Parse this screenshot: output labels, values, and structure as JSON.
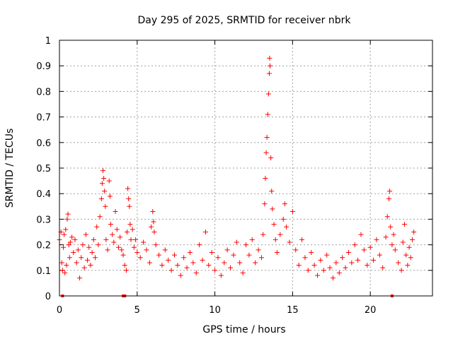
{
  "chart_data": {
    "type": "scatter",
    "title": "Day 295 of 2025, SRMTID for receiver nbrk",
    "xlabel": "GPS time / hours",
    "ylabel": "SRMTID / TECUs",
    "xlim": [
      0,
      24
    ],
    "ylim": [
      0,
      1
    ],
    "xticks": [
      "0",
      "5",
      "10",
      "15",
      "20"
    ],
    "xtick_values": [
      0,
      5,
      10,
      15,
      20
    ],
    "yticks": [
      "0",
      "0.1",
      "0.2",
      "0.3",
      "0.4",
      "0.5",
      "0.6",
      "0.7",
      "0.8",
      "0.9",
      "1"
    ],
    "ytick_values": [
      0,
      0.1,
      0.2,
      0.3,
      0.4,
      0.5,
      0.6,
      0.7,
      0.8,
      0.9,
      1.0
    ],
    "grid": true,
    "marker": "+",
    "color": "#ff0000",
    "series": [
      {
        "name": "SRMTID",
        "points": [
          [
            0.0,
            0.22
          ],
          [
            0.1,
            0.25
          ],
          [
            0.15,
            0.13
          ],
          [
            0.2,
            0.1
          ],
          [
            0.25,
            0.19
          ],
          [
            0.3,
            0.24
          ],
          [
            0.35,
            0.09
          ],
          [
            0.4,
            0.26
          ],
          [
            0.45,
            0.12
          ],
          [
            0.5,
            0.3
          ],
          [
            0.55,
            0.32
          ],
          [
            0.6,
            0.2
          ],
          [
            0.65,
            0.15
          ],
          [
            0.7,
            0.21
          ],
          [
            0.8,
            0.23
          ],
          [
            0.9,
            0.17
          ],
          [
            1.0,
            0.22
          ],
          [
            1.1,
            0.13
          ],
          [
            1.2,
            0.18
          ],
          [
            1.3,
            0.07
          ],
          [
            1.4,
            0.15
          ],
          [
            1.5,
            0.2
          ],
          [
            1.6,
            0.11
          ],
          [
            1.7,
            0.24
          ],
          [
            1.8,
            0.14
          ],
          [
            1.9,
            0.19
          ],
          [
            2.0,
            0.12
          ],
          [
            2.1,
            0.17
          ],
          [
            2.2,
            0.22
          ],
          [
            2.3,
            0.15
          ],
          [
            2.4,
            0.27
          ],
          [
            2.5,
            0.2
          ],
          [
            2.6,
            0.31
          ],
          [
            2.7,
            0.38
          ],
          [
            2.75,
            0.44
          ],
          [
            2.8,
            0.49
          ],
          [
            2.85,
            0.46
          ],
          [
            2.9,
            0.41
          ],
          [
            2.95,
            0.35
          ],
          [
            3.0,
            0.22
          ],
          [
            3.1,
            0.18
          ],
          [
            3.2,
            0.45
          ],
          [
            3.25,
            0.39
          ],
          [
            3.3,
            0.28
          ],
          [
            3.4,
            0.24
          ],
          [
            3.5,
            0.21
          ],
          [
            3.6,
            0.33
          ],
          [
            3.7,
            0.26
          ],
          [
            3.8,
            0.19
          ],
          [
            3.9,
            0.23
          ],
          [
            4.0,
            0.18
          ],
          [
            4.1,
            0.16
          ],
          [
            4.2,
            0.12
          ],
          [
            4.3,
            0.1
          ],
          [
            4.35,
            0.25
          ],
          [
            4.4,
            0.42
          ],
          [
            4.45,
            0.38
          ],
          [
            4.5,
            0.35
          ],
          [
            4.55,
            0.28
          ],
          [
            4.6,
            0.22
          ],
          [
            4.7,
            0.26
          ],
          [
            4.8,
            0.19
          ],
          [
            4.9,
            0.22
          ],
          [
            5.0,
            0.17
          ],
          [
            5.2,
            0.15
          ],
          [
            5.4,
            0.21
          ],
          [
            5.6,
            0.18
          ],
          [
            5.8,
            0.13
          ],
          [
            5.9,
            0.27
          ],
          [
            6.0,
            0.33
          ],
          [
            6.05,
            0.29
          ],
          [
            6.1,
            0.25
          ],
          [
            6.2,
            0.2
          ],
          [
            6.4,
            0.16
          ],
          [
            6.6,
            0.12
          ],
          [
            6.8,
            0.18
          ],
          [
            7.0,
            0.14
          ],
          [
            7.2,
            0.1
          ],
          [
            7.4,
            0.16
          ],
          [
            7.6,
            0.12
          ],
          [
            7.8,
            0.08
          ],
          [
            8.0,
            0.15
          ],
          [
            8.2,
            0.11
          ],
          [
            8.4,
            0.17
          ],
          [
            8.6,
            0.13
          ],
          [
            8.8,
            0.09
          ],
          [
            9.0,
            0.2
          ],
          [
            9.2,
            0.14
          ],
          [
            9.4,
            0.25
          ],
          [
            9.6,
            0.12
          ],
          [
            9.8,
            0.17
          ],
          [
            10.0,
            0.1
          ],
          [
            10.2,
            0.15
          ],
          [
            10.4,
            0.08
          ],
          [
            10.6,
            0.13
          ],
          [
            10.8,
            0.18
          ],
          [
            11.0,
            0.11
          ],
          [
            11.2,
            0.16
          ],
          [
            11.4,
            0.21
          ],
          [
            11.6,
            0.13
          ],
          [
            11.8,
            0.09
          ],
          [
            12.0,
            0.2
          ],
          [
            12.2,
            0.16
          ],
          [
            12.4,
            0.22
          ],
          [
            12.6,
            0.13
          ],
          [
            12.8,
            0.18
          ],
          [
            13.0,
            0.15
          ],
          [
            13.1,
            0.24
          ],
          [
            13.2,
            0.36
          ],
          [
            13.25,
            0.46
          ],
          [
            13.3,
            0.56
          ],
          [
            13.35,
            0.62
          ],
          [
            13.4,
            0.71
          ],
          [
            13.45,
            0.79
          ],
          [
            13.5,
            0.87
          ],
          [
            13.52,
            0.93
          ],
          [
            13.55,
            0.9
          ],
          [
            13.6,
            0.54
          ],
          [
            13.65,
            0.41
          ],
          [
            13.7,
            0.34
          ],
          [
            13.8,
            0.28
          ],
          [
            13.9,
            0.22
          ],
          [
            14.0,
            0.17
          ],
          [
            14.2,
            0.24
          ],
          [
            14.4,
            0.3
          ],
          [
            14.5,
            0.36
          ],
          [
            14.6,
            0.27
          ],
          [
            14.8,
            0.21
          ],
          [
            15.0,
            0.33
          ],
          [
            15.2,
            0.18
          ],
          [
            15.4,
            0.12
          ],
          [
            15.6,
            0.22
          ],
          [
            15.8,
            0.15
          ],
          [
            16.0,
            0.1
          ],
          [
            16.2,
            0.17
          ],
          [
            16.4,
            0.12
          ],
          [
            16.6,
            0.08
          ],
          [
            16.8,
            0.14
          ],
          [
            17.0,
            0.1
          ],
          [
            17.2,
            0.16
          ],
          [
            17.4,
            0.11
          ],
          [
            17.6,
            0.07
          ],
          [
            17.8,
            0.13
          ],
          [
            18.0,
            0.09
          ],
          [
            18.2,
            0.15
          ],
          [
            18.4,
            0.11
          ],
          [
            18.6,
            0.17
          ],
          [
            18.8,
            0.13
          ],
          [
            19.0,
            0.2
          ],
          [
            19.2,
            0.14
          ],
          [
            19.4,
            0.24
          ],
          [
            19.6,
            0.18
          ],
          [
            19.8,
            0.12
          ],
          [
            20.0,
            0.19
          ],
          [
            20.2,
            0.14
          ],
          [
            20.4,
            0.22
          ],
          [
            20.6,
            0.16
          ],
          [
            20.8,
            0.11
          ],
          [
            21.0,
            0.23
          ],
          [
            21.1,
            0.31
          ],
          [
            21.2,
            0.38
          ],
          [
            21.25,
            0.41
          ],
          [
            21.3,
            0.27
          ],
          [
            21.4,
            0.2
          ],
          [
            21.5,
            0.24
          ],
          [
            21.6,
            0.18
          ],
          [
            21.8,
            0.13
          ],
          [
            22.0,
            0.1
          ],
          [
            22.1,
            0.21
          ],
          [
            22.2,
            0.28
          ],
          [
            22.3,
            0.16
          ],
          [
            22.4,
            0.12
          ],
          [
            22.5,
            0.19
          ],
          [
            22.6,
            0.15
          ],
          [
            22.7,
            0.22
          ],
          [
            22.8,
            0.25
          ]
        ]
      }
    ],
    "zero_points_x": [
      0.2,
      4.1,
      4.2,
      21.4
    ]
  }
}
